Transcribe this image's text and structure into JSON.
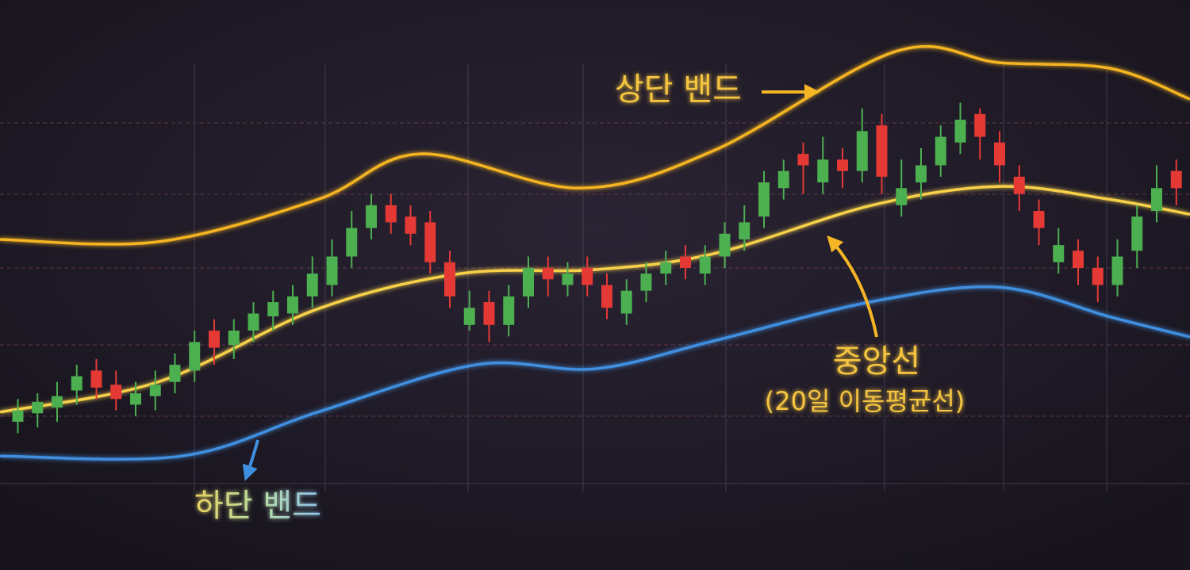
{
  "chart_data": {
    "type": "candlestick",
    "xlim": [
      0,
      100
    ],
    "ylim": [
      0,
      100
    ],
    "up_color": "#4caf50",
    "down_color": "#e53935",
    "x": [
      1.5,
      3.15,
      4.8,
      6.45,
      8.1,
      9.75,
      11.4,
      13.05,
      14.7,
      16.35,
      18,
      19.65,
      21.3,
      22.95,
      24.6,
      26.25,
      27.9,
      29.55,
      31.2,
      32.85,
      34.5,
      36.15,
      37.8,
      39.45,
      41.1,
      42.75,
      44.4,
      46.05,
      47.7,
      49.35,
      51,
      52.65,
      54.3,
      55.95,
      57.6,
      59.25,
      60.9,
      62.55,
      64.2,
      65.85,
      67.5,
      69.15,
      70.8,
      72.45,
      74.1,
      75.75,
      77.4,
      79.05,
      80.7,
      82.35,
      84,
      85.65,
      87.3,
      88.95,
      90.6,
      92.25,
      93.9,
      95.55,
      97.2,
      98.85
    ],
    "open": [
      26,
      27.5,
      28.5,
      31.5,
      35,
      32.5,
      29,
      30.5,
      33,
      35,
      42,
      39.5,
      42,
      44.5,
      45,
      48,
      50,
      55,
      60,
      64,
      62,
      61,
      54,
      43,
      47,
      43,
      48,
      53,
      50,
      53,
      50,
      45,
      49,
      52,
      55,
      52,
      55,
      58,
      62,
      67,
      73,
      68,
      72,
      70,
      78,
      64,
      68,
      71,
      75,
      80,
      75,
      69,
      63,
      54,
      56,
      53,
      50,
      56,
      63,
      70
    ],
    "high": [
      30,
      31,
      33,
      36,
      37,
      35,
      33,
      35,
      38,
      42,
      44,
      44,
      47,
      49,
      50,
      55,
      58,
      63,
      66,
      66,
      64,
      63,
      56,
      49,
      49,
      50,
      55,
      55,
      54,
      55,
      52,
      51,
      54,
      56,
      57,
      57,
      61,
      64,
      70,
      72,
      75,
      76,
      74,
      81,
      80,
      72,
      74,
      78,
      82,
      81,
      77,
      71,
      65,
      60,
      58,
      55,
      58,
      64,
      71,
      72
    ],
    "low": [
      24,
      25,
      26,
      29,
      30,
      28,
      27,
      28,
      31,
      33,
      36,
      37,
      40,
      42,
      43,
      46,
      48,
      53,
      58,
      59,
      57,
      52,
      46,
      42,
      40,
      41,
      46,
      48,
      48,
      48,
      44,
      43,
      47,
      50,
      51,
      50,
      53,
      56,
      60,
      65,
      66,
      66,
      67,
      68,
      66,
      62,
      65,
      69,
      73,
      72,
      68,
      63,
      57,
      52,
      50,
      47,
      48,
      53,
      61,
      64
    ],
    "close": [
      28,
      29.5,
      30.5,
      34,
      32,
      30,
      31,
      32.5,
      36,
      40,
      39,
      42,
      45,
      47,
      48,
      52,
      55,
      60,
      64,
      61,
      59,
      54,
      48,
      46,
      43,
      48,
      53,
      51,
      52,
      50,
      46,
      49,
      52,
      54,
      53,
      55,
      59,
      61,
      68,
      70,
      71,
      72,
      70,
      77,
      69,
      67,
      71,
      76,
      79,
      76,
      71,
      66,
      60,
      57,
      53,
      50,
      55,
      62,
      67,
      67
    ],
    "series": [
      {
        "color": "#f5b524",
        "x": [
          0,
          13.3,
          26.7,
          35.3,
          48.7,
          60,
          75.3,
          84,
          93.3,
          100
        ],
        "values": [
          58,
          57.6,
          65,
          73,
          67,
          73.6,
          91,
          89,
          88,
          82.6
        ]
      },
      {
        "color": "#f7d04a",
        "x": [
          0,
          13.3,
          26.7,
          38.7,
          50,
          60,
          73.3,
          84,
          93.3,
          100
        ],
        "values": [
          27.7,
          33,
          45.8,
          52,
          52.7,
          55.5,
          64,
          67.3,
          65,
          62.4
        ]
      },
      {
        "color": "#3f8fe0",
        "x": [
          0,
          15.3,
          26.7,
          40,
          50,
          60,
          73.3,
          84,
          93.3,
          100
        ],
        "values": [
          20,
          20,
          27.7,
          36,
          35.3,
          40.2,
          47.1,
          49.6,
          44.4,
          40.9
        ]
      }
    ],
    "annotations": [
      "상단 밴드",
      "중앙선",
      "(20일 이동평균선)",
      "하단 밴드"
    ]
  }
}
